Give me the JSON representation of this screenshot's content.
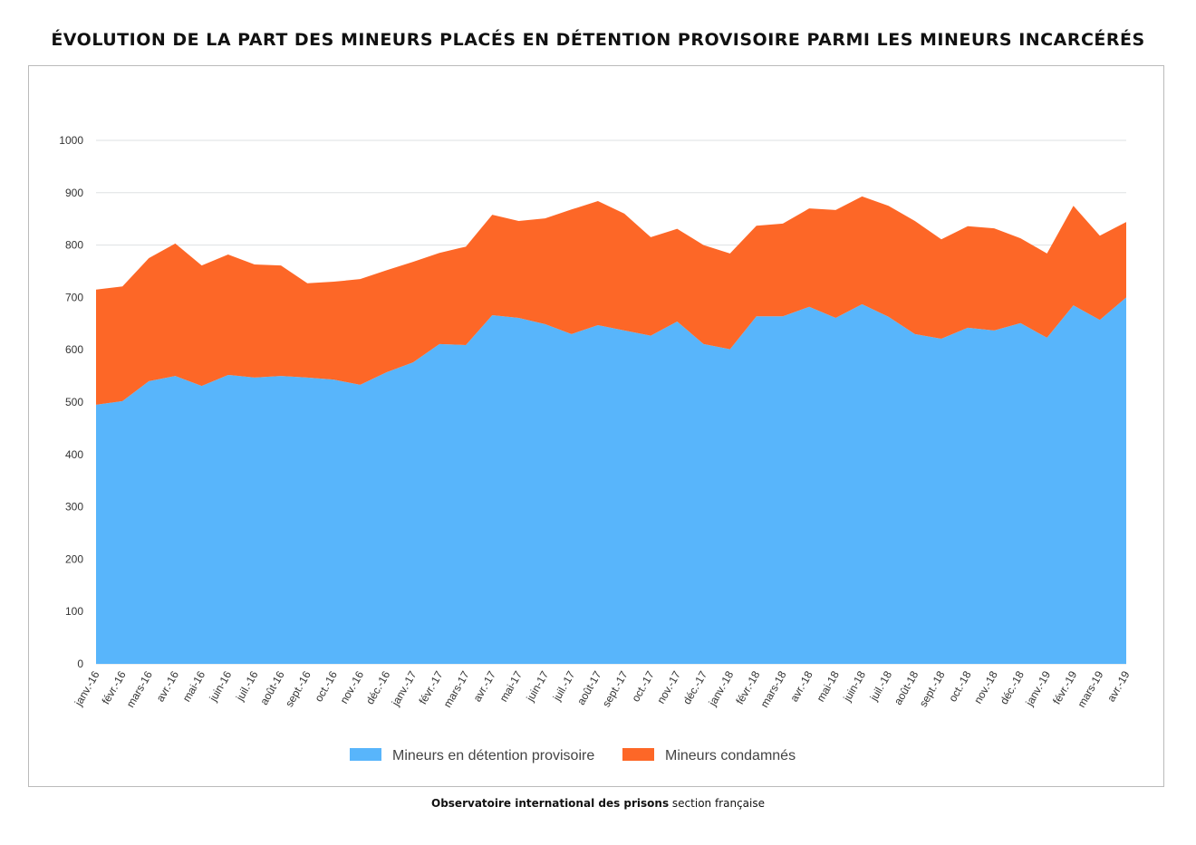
{
  "title": "ÉVOLUTION DE LA PART DES MINEURS PLACÉS EN DÉTENTION PROVISOIRE PARMI LES MINEURS INCARCÉRÉS",
  "footer": {
    "bold": "Observatoire international des prisons",
    "rest": " section française"
  },
  "chart_data": {
    "type": "area",
    "stacked": true,
    "title": "ÉVOLUTION DE LA PART DES MINEURS PLACÉS EN DÉTENTION PROVISOIRE PARMI LES MINEURS INCARCÉRÉS",
    "xlabel": "",
    "ylabel": "",
    "ylim": [
      0,
      1000
    ],
    "yticks": [
      0,
      100,
      200,
      300,
      400,
      500,
      600,
      700,
      800,
      900,
      1000
    ],
    "grid": true,
    "legend_position": "bottom",
    "categories": [
      "janv.-16",
      "févr.-16",
      "mars-16",
      "avr.-16",
      "mai-16",
      "juin-16",
      "juil.-16",
      "août-16",
      "sept.-16",
      "oct.-16",
      "nov.-16",
      "déc.-16",
      "janv.-17",
      "févr.-17",
      "mars-17",
      "avr.-17",
      "mai-17",
      "juin-17",
      "juil.-17",
      "août-17",
      "sept.-17",
      "oct.-17",
      "nov.-17",
      "déc.-17",
      "janv.-18",
      "févr.-18",
      "mars-18",
      "avr.-18",
      "mai-18",
      "juin-18",
      "juil.-18",
      "août-18",
      "sept.-18",
      "oct.-18",
      "nov.-18",
      "déc.-18",
      "janv.-19",
      "févr.-19",
      "mars-19",
      "avr.-19"
    ],
    "series": [
      {
        "name": "Mineurs en détention provisoire",
        "color": "#58b5fb",
        "values": [
          495,
          502,
          540,
          550,
          531,
          552,
          547,
          550,
          547,
          543,
          533,
          557,
          576,
          611,
          609,
          666,
          661,
          649,
          630,
          647,
          637,
          627,
          654,
          611,
          601,
          664,
          664,
          682,
          661,
          687,
          663,
          630,
          621,
          642,
          637,
          651,
          623,
          685,
          657,
          700
        ]
      },
      {
        "name": "Mineurs condamnés",
        "color": "#fd6727",
        "values": [
          220,
          219,
          235,
          253,
          230,
          230,
          216,
          211,
          180,
          187,
          202,
          195,
          192,
          174,
          188,
          192,
          185,
          202,
          238,
          237,
          223,
          188,
          177,
          189,
          183,
          173,
          177,
          188,
          206,
          206,
          212,
          216,
          190,
          194,
          195,
          162,
          161,
          190,
          161,
          144
        ]
      }
    ]
  }
}
